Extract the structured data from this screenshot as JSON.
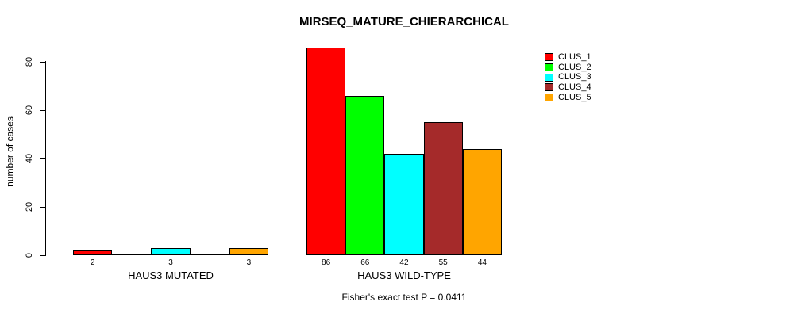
{
  "title": "MIRSEQ_MATURE_CHIERARCHICAL",
  "annotation": "Fisher's exact test P = 0.0411",
  "y_axis": {
    "label": "number of cases",
    "ticks": [
      "0",
      "20",
      "40",
      "60",
      "80"
    ]
  },
  "x_axis": {
    "group_labels": [
      "HAUS3 MUTATED",
      "HAUS3 WILD-TYPE"
    ]
  },
  "legend": {
    "entries": [
      {
        "label": "CLUS_1",
        "color": "#FF0000"
      },
      {
        "label": "CLUS_2",
        "color": "#00FF00"
      },
      {
        "label": "CLUS_3",
        "color": "#00FFFF"
      },
      {
        "label": "CLUS_4",
        "color": "#A52A2A"
      },
      {
        "label": "CLUS_5",
        "color": "#FFA500"
      }
    ]
  },
  "chart_data": {
    "type": "bar",
    "title": "MIRSEQ_MATURE_CHIERARCHICAL",
    "ylabel": "number of cases",
    "xlabel": "",
    "ylim": [
      0,
      86
    ],
    "yticks": [
      0,
      20,
      40,
      60,
      80
    ],
    "grid": false,
    "legend_position": "top-right",
    "categories": [
      "HAUS3 MUTATED",
      "HAUS3 WILD-TYPE"
    ],
    "series": [
      {
        "name": "CLUS_1",
        "color": "#FF0000",
        "values": [
          2,
          86
        ]
      },
      {
        "name": "CLUS_2",
        "color": "#00FF00",
        "values": [
          0,
          66
        ]
      },
      {
        "name": "CLUS_3",
        "color": "#00FFFF",
        "values": [
          3,
          42
        ]
      },
      {
        "name": "CLUS_4",
        "color": "#A52A2A",
        "values": [
          0,
          55
        ]
      },
      {
        "name": "CLUS_5",
        "color": "#FFA500",
        "values": [
          3,
          44
        ]
      }
    ],
    "bar_value_labels": {
      "HAUS3 MUTATED": [
        "2",
        "",
        "3",
        "",
        "3"
      ],
      "HAUS3 WILD-TYPE": [
        "86",
        "66",
        "42",
        "55",
        "44"
      ]
    },
    "annotation": "Fisher's exact test P = 0.0411"
  }
}
